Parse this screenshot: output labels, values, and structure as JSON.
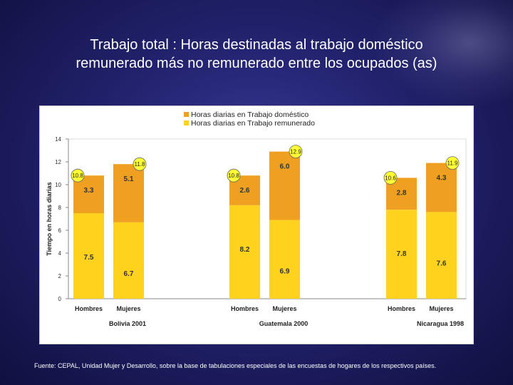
{
  "slide": {
    "title_line1": "Trabajo total : Horas destinadas al trabajo doméstico",
    "title_line2": "remunerado más no remunerado entre los ocupados (as)",
    "source": "Fuente: CEPAL, Unidad Mujer y Desarrollo, sobre la base de tabulaciones especiales de las encuestas de hogares de los respectivos países."
  },
  "colors": {
    "domestic": "#f0a020",
    "paid": "#ffd21e",
    "badge": "#ffff33"
  },
  "chart_data": {
    "type": "bar",
    "stacked": true,
    "title": "",
    "ylabel": "Tiempo en horas diarias",
    "xlabel": "",
    "ylim": [
      0,
      14
    ],
    "yticks": [
      "0",
      "2",
      "4",
      "6",
      "8",
      "10",
      "12",
      "14"
    ],
    "groups": [
      "Bolivia 2001",
      "Guatemala 2000",
      "Nicaragua 1998"
    ],
    "categories": [
      "Hombres",
      "Mujeres",
      "Hombres",
      "Mujeres",
      "Hombres",
      "Mujeres"
    ],
    "series": [
      {
        "name": "Horas diarias en Trabajo remunerado",
        "values": [
          7.5,
          6.7,
          8.2,
          6.9,
          7.8,
          7.6
        ],
        "labels": [
          "7.5",
          "6.7",
          "8.2",
          "6.9",
          "7.8",
          "7.6"
        ]
      },
      {
        "name": "Horas diarias en Trabajo doméstico",
        "values": [
          3.3,
          5.1,
          2.6,
          6.0,
          2.8,
          4.3
        ],
        "labels": [
          "3.3",
          "5.1",
          "2.6",
          "6.0",
          "2.8",
          "4.3"
        ]
      }
    ],
    "totals": [
      10.8,
      11.8,
      10.8,
      12.9,
      10.6,
      11.9
    ],
    "total_labels": [
      "10.8",
      "11.8",
      "10.8",
      "12.9",
      "10.6",
      "11.9"
    ],
    "legend": [
      "Horas  diarias en Trabajo doméstico",
      "Horas diarias en Trabajo remunerado"
    ]
  }
}
